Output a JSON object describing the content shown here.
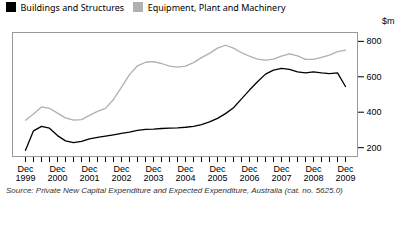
{
  "chart_data": {
    "type": "line",
    "caption": "Source: Private New Capital Expenditure and Expected Expenditure, Australia (cat. no. 5625.0)",
    "ylabel": "$m",
    "categories": [
      "Dec\n1999",
      null,
      null,
      null,
      "Dec\n2000",
      null,
      null,
      null,
      "Dec\n2001",
      null,
      null,
      null,
      "Dec\n2002",
      null,
      null,
      null,
      "Dec\n2003",
      null,
      null,
      null,
      "Dec\n2004",
      null,
      null,
      null,
      "Dec\n2005",
      null,
      null,
      null,
      "Dec\n2006",
      null,
      null,
      null,
      "Dec\n2007",
      null,
      null,
      null,
      "Dec\n2008",
      null,
      null,
      null,
      "Dec\n2009"
    ],
    "series": [
      {
        "name": "Buildings and Structures",
        "color": "#000000",
        "values": [
          185,
          295,
          320,
          310,
          268,
          238,
          228,
          235,
          250,
          258,
          265,
          272,
          280,
          288,
          298,
          303,
          305,
          308,
          310,
          312,
          315,
          320,
          330,
          345,
          365,
          392,
          425,
          475,
          525,
          572,
          615,
          638,
          648,
          642,
          628,
          622,
          628,
          622,
          618,
          622,
          545
        ]
      },
      {
        "name": "Equipment, Plant and Machinery",
        "color": "#b0b0b0",
        "values": [
          355,
          390,
          430,
          422,
          395,
          368,
          355,
          358,
          382,
          405,
          422,
          472,
          542,
          612,
          662,
          682,
          686,
          675,
          660,
          655,
          660,
          680,
          708,
          732,
          762,
          778,
          762,
          736,
          716,
          700,
          694,
          700,
          716,
          730,
          718,
          698,
          698,
          710,
          722,
          742,
          750
        ]
      }
    ],
    "ylim": [
      150,
      850
    ],
    "yticks": [
      200,
      400,
      600,
      800
    ],
    "legend": "upper left",
    "grid": false
  }
}
